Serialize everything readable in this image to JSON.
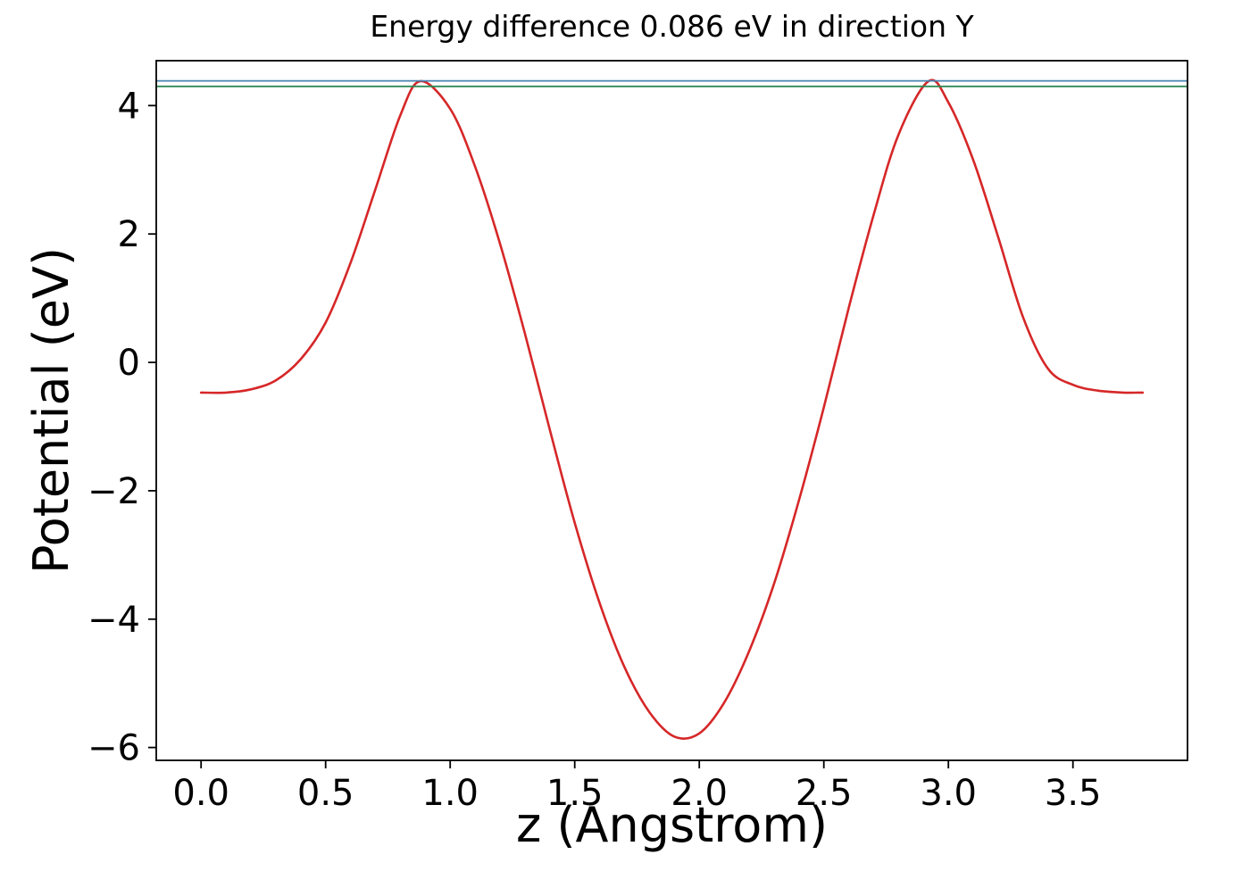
{
  "chart_data": {
    "type": "line",
    "title": "Energy difference 0.086 eV in direction Y",
    "xlabel": "z (Angstrom)",
    "ylabel": "Potential (eV)",
    "xlim": [
      -0.18,
      3.96
    ],
    "ylim": [
      -6.2,
      4.7
    ],
    "xticks": [
      0.0,
      0.5,
      1.0,
      1.5,
      2.0,
      2.5,
      3.0,
      3.5
    ],
    "xtick_labels": [
      "0.0",
      "0.5",
      "1.0",
      "1.5",
      "2.0",
      "2.5",
      "3.0",
      "3.5"
    ],
    "yticks": [
      -6,
      -4,
      -2,
      0,
      2,
      4
    ],
    "ytick_labels": [
      "−6",
      "−4",
      "−2",
      "0",
      "2",
      "4"
    ],
    "grid": false,
    "legend": null,
    "energy_difference_eV": 0.086,
    "direction": "Y",
    "series": [
      {
        "name": "potential-curve",
        "type": "line",
        "color": "#d62728",
        "x": [
          0.0,
          0.1,
          0.2,
          0.3,
          0.4,
          0.5,
          0.6,
          0.7,
          0.8,
          0.88,
          1.0,
          1.1,
          1.2,
          1.3,
          1.4,
          1.5,
          1.6,
          1.7,
          1.8,
          1.9,
          2.0,
          2.1,
          2.2,
          2.3,
          2.4,
          2.5,
          2.6,
          2.7,
          2.8,
          2.92,
          3.0,
          3.1,
          3.2,
          3.3,
          3.4,
          3.5,
          3.6,
          3.7,
          3.78
        ],
        "y": [
          -0.47,
          -0.47,
          -0.42,
          -0.28,
          0.05,
          0.62,
          1.55,
          2.7,
          3.85,
          4.38,
          3.95,
          3.05,
          1.85,
          0.45,
          -1.05,
          -2.5,
          -3.75,
          -4.75,
          -5.45,
          -5.83,
          -5.78,
          -5.3,
          -4.5,
          -3.45,
          -2.15,
          -0.7,
          0.85,
          2.3,
          3.55,
          4.38,
          4.05,
          3.15,
          1.95,
          0.7,
          -0.1,
          -0.35,
          -0.44,
          -0.47,
          -0.47
        ]
      },
      {
        "name": "upper-energy-level-line",
        "type": "hline",
        "color": "#4682b4",
        "y": 4.386
      },
      {
        "name": "lower-energy-level-line",
        "type": "hline",
        "color": "#2e8b57",
        "y": 4.3
      }
    ]
  }
}
